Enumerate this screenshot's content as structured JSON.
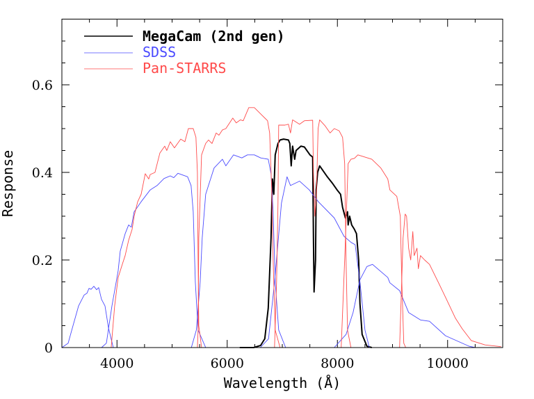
{
  "chart_data": {
    "type": "line",
    "title": "",
    "xlabel": "Wavelength (Å)",
    "ylabel": "Response",
    "xlim": [
      3000,
      11000
    ],
    "ylim": [
      0,
      0.75
    ],
    "x_ticks": [
      4000,
      6000,
      8000,
      10000
    ],
    "x_tick_labels": [
      "4000",
      "6000",
      "8000",
      "10000"
    ],
    "y_ticks": [
      0,
      0.2,
      0.4,
      0.6
    ],
    "y_tick_labels": [
      "0",
      "0.2",
      "0.4",
      "0.6"
    ],
    "grid": false,
    "legend_position": "top-left",
    "series": [
      {
        "name": "MegaCam (2nd gen)",
        "color": "#000000",
        "bands": [
          [
            [
              6228,
              0
            ],
            [
              6480,
              0
            ],
            [
              6607,
              0.005
            ],
            [
              6682,
              0.02
            ],
            [
              6745,
              0.09
            ],
            [
              6796,
              0.25
            ],
            [
              6821,
              0.385
            ],
            [
              6846,
              0.35
            ],
            [
              6871,
              0.44
            ],
            [
              6922,
              0.466
            ],
            [
              6960,
              0.474
            ],
            [
              7023,
              0.476
            ],
            [
              7111,
              0.474
            ],
            [
              7136,
              0.466
            ],
            [
              7161,
              0.415
            ],
            [
              7187,
              0.46
            ],
            [
              7224,
              0.43
            ],
            [
              7250,
              0.45
            ],
            [
              7338,
              0.46
            ],
            [
              7401,
              0.458
            ],
            [
              7502,
              0.44
            ],
            [
              7552,
              0.435
            ],
            [
              7565,
              0.25
            ],
            [
              7577,
              0.127
            ],
            [
              7603,
              0.2
            ],
            [
              7615,
              0.36
            ],
            [
              7641,
              0.4
            ],
            [
              7678,
              0.415
            ],
            [
              7817,
              0.39
            ],
            [
              7905,
              0.376
            ],
            [
              7994,
              0.36
            ],
            [
              8057,
              0.35
            ],
            [
              8094,
              0.32
            ],
            [
              8145,
              0.296
            ],
            [
              8183,
              0.31
            ],
            [
              8195,
              0.28
            ],
            [
              8221,
              0.3
            ],
            [
              8259,
              0.28
            ],
            [
              8309,
              0.27
            ],
            [
              8347,
              0.26
            ],
            [
              8385,
              0.2
            ],
            [
              8410,
              0.1
            ],
            [
              8448,
              0.03
            ],
            [
              8536,
              0.003
            ],
            [
              8624,
              0
            ]
          ]
        ]
      },
      {
        "name": "SDSS",
        "color": "#4a4aff",
        "bands": [
          [
            [
              3000,
              0
            ],
            [
              3114,
              0.01
            ],
            [
              3202,
              0.05
            ],
            [
              3303,
              0.095
            ],
            [
              3404,
              0.12
            ],
            [
              3454,
              0.124
            ],
            [
              3492,
              0.135
            ],
            [
              3530,
              0.133
            ],
            [
              3580,
              0.14
            ],
            [
              3631,
              0.132
            ],
            [
              3668,
              0.137
            ],
            [
              3719,
              0.11
            ],
            [
              3782,
              0.095
            ],
            [
              3845,
              0.045
            ],
            [
              3933,
              0
            ]
          ],
          [
            [
              3719,
              0
            ],
            [
              3807,
              0.01
            ],
            [
              3908,
              0.095
            ],
            [
              4021,
              0.175
            ],
            [
              4059,
              0.22
            ],
            [
              4148,
              0.26
            ],
            [
              4211,
              0.28
            ],
            [
              4261,
              0.275
            ],
            [
              4311,
              0.31
            ],
            [
              4438,
              0.333
            ],
            [
              4602,
              0.36
            ],
            [
              4728,
              0.37
            ],
            [
              4854,
              0.386
            ],
            [
              4967,
              0.392
            ],
            [
              5030,
              0.388
            ],
            [
              5106,
              0.398
            ],
            [
              5282,
              0.39
            ],
            [
              5345,
              0.37
            ],
            [
              5383,
              0.31
            ],
            [
              5421,
              0.15
            ],
            [
              5472,
              0.04
            ],
            [
              5610,
              0
            ]
          ],
          [
            [
              5350,
              0
            ],
            [
              5440,
              0.04
            ],
            [
              5510,
              0.15
            ],
            [
              5547,
              0.25
            ],
            [
              5610,
              0.35
            ],
            [
              5673,
              0.375
            ],
            [
              5762,
              0.41
            ],
            [
              5913,
              0.43
            ],
            [
              5976,
              0.415
            ],
            [
              6115,
              0.44
            ],
            [
              6266,
              0.433
            ],
            [
              6367,
              0.44
            ],
            [
              6493,
              0.44
            ],
            [
              6607,
              0.433
            ],
            [
              6745,
              0.43
            ],
            [
              6796,
              0.397
            ],
            [
              6833,
              0.31
            ],
            [
              6871,
              0.15
            ],
            [
              6934,
              0.04
            ],
            [
              7060,
              0
            ]
          ],
          [
            [
              6600,
              0
            ],
            [
              6750,
              0.02
            ],
            [
              6860,
              0.15
            ],
            [
              6985,
              0.33
            ],
            [
              7086,
              0.39
            ],
            [
              7149,
              0.37
            ],
            [
              7313,
              0.38
            ],
            [
              7489,
              0.36
            ],
            [
              7653,
              0.333
            ],
            [
              7943,
              0.296
            ],
            [
              8120,
              0.254
            ],
            [
              8250,
              0.24
            ],
            [
              8322,
              0.235
            ],
            [
              8410,
              0.15
            ],
            [
              8500,
              0.04
            ],
            [
              8580,
              0
            ]
          ],
          [
            [
              7943,
              0
            ],
            [
              8157,
              0.03
            ],
            [
              8284,
              0.08
            ],
            [
              8410,
              0.155
            ],
            [
              8536,
              0.185
            ],
            [
              8637,
              0.19
            ],
            [
              8914,
              0.16
            ],
            [
              8952,
              0.148
            ],
            [
              9129,
              0.13
            ],
            [
              9293,
              0.08
            ],
            [
              9507,
              0.063
            ],
            [
              9671,
              0.06
            ],
            [
              9961,
              0.027
            ],
            [
              10390,
              0.003
            ],
            [
              10500,
              0
            ]
          ]
        ]
      },
      {
        "name": "Pan-STARRS",
        "color": "#ff4a4a",
        "bands": [
          [
            [
              3895,
              0
            ],
            [
              3958,
              0.095
            ],
            [
              4021,
              0.16
            ],
            [
              4097,
              0.19
            ],
            [
              4148,
              0.21
            ],
            [
              4211,
              0.245
            ],
            [
              4274,
              0.27
            ],
            [
              4311,
              0.3
            ],
            [
              4375,
              0.333
            ],
            [
              4438,
              0.35
            ],
            [
              4513,
              0.397
            ],
            [
              4576,
              0.385
            ],
            [
              4602,
              0.395
            ],
            [
              4690,
              0.4
            ],
            [
              4778,
              0.444
            ],
            [
              4866,
              0.46
            ],
            [
              4904,
              0.45
            ],
            [
              4967,
              0.47
            ],
            [
              5043,
              0.456
            ],
            [
              5156,
              0.476
            ],
            [
              5232,
              0.47
            ],
            [
              5295,
              0.5
            ],
            [
              5383,
              0.5
            ],
            [
              5433,
              0.48
            ],
            [
              5459,
              0.4
            ],
            [
              5472,
              0.2
            ],
            [
              5484,
              0.05
            ],
            [
              5535,
              0
            ]
          ],
          [
            [
              5459,
              0
            ],
            [
              5472,
              0.04
            ],
            [
              5484,
              0.25
            ],
            [
              5535,
              0.44
            ],
            [
              5610,
              0.466
            ],
            [
              5661,
              0.474
            ],
            [
              5724,
              0.466
            ],
            [
              5800,
              0.49
            ],
            [
              5850,
              0.485
            ],
            [
              5913,
              0.497
            ],
            [
              5976,
              0.5
            ],
            [
              6102,
              0.524
            ],
            [
              6165,
              0.513
            ],
            [
              6241,
              0.52
            ],
            [
              6291,
              0.518
            ],
            [
              6392,
              0.548
            ],
            [
              6493,
              0.548
            ],
            [
              6619,
              0.532
            ],
            [
              6733,
              0.518
            ],
            [
              6770,
              0.49
            ],
            [
              6808,
              0.36
            ],
            [
              6833,
              0.2
            ],
            [
              6871,
              0.04
            ],
            [
              6960,
              0
            ]
          ],
          [
            [
              6859,
              0
            ],
            [
              6897,
              0.15
            ],
            [
              6922,
              0.33
            ],
            [
              6935,
              0.508
            ],
            [
              7048,
              0.508
            ],
            [
              7111,
              0.51
            ],
            [
              7149,
              0.49
            ],
            [
              7187,
              0.52
            ],
            [
              7313,
              0.51
            ],
            [
              7401,
              0.518
            ],
            [
              7552,
              0.519
            ],
            [
              7565,
              0.4
            ],
            [
              7590,
              0.3
            ],
            [
              7620,
              0.35
            ],
            [
              7650,
              0.5
            ],
            [
              7678,
              0.52
            ],
            [
              7779,
              0.506
            ],
            [
              7867,
              0.49
            ],
            [
              7943,
              0.5
            ],
            [
              8031,
              0.495
            ],
            [
              8094,
              0.48
            ],
            [
              8132,
              0.42
            ],
            [
              8157,
              0.2
            ],
            [
              8183,
              0.04
            ],
            [
              8246,
              0
            ]
          ],
          [
            [
              8069,
              0
            ],
            [
              8132,
              0.2
            ],
            [
              8195,
              0.42
            ],
            [
              8246,
              0.43
            ],
            [
              8309,
              0.432
            ],
            [
              8372,
              0.44
            ],
            [
              8624,
              0.43
            ],
            [
              8788,
              0.41
            ],
            [
              8914,
              0.385
            ],
            [
              8952,
              0.36
            ],
            [
              9078,
              0.345
            ],
            [
              9141,
              0.3
            ],
            [
              9166,
              0.16
            ],
            [
              9204,
              0.01
            ],
            [
              9240,
              0
            ]
          ],
          [
            [
              9129,
              0
            ],
            [
              9192,
              0.25
            ],
            [
              9230,
              0.305
            ],
            [
              9255,
              0.3
            ],
            [
              9293,
              0.227
            ],
            [
              9331,
              0.2
            ],
            [
              9369,
              0.265
            ],
            [
              9394,
              0.21
            ],
            [
              9444,
              0.227
            ],
            [
              9469,
              0.18
            ],
            [
              9507,
              0.21
            ],
            [
              9583,
              0.2
            ],
            [
              9671,
              0.19
            ],
            [
              9835,
              0.148
            ],
            [
              9961,
              0.115
            ],
            [
              10138,
              0.068
            ],
            [
              10264,
              0.043
            ],
            [
              10428,
              0.016
            ],
            [
              10680,
              0.006
            ],
            [
              10970,
              0.002
            ]
          ]
        ]
      }
    ]
  }
}
